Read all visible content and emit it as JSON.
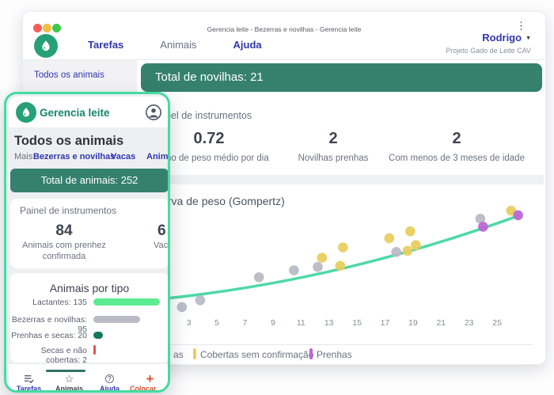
{
  "main_window": {
    "titlebar": {
      "title": "Gerencia leite - Bezerras e novilhas - Gerencia leite"
    },
    "nav": {
      "items": [
        "Tarefas",
        "Animais",
        "Ajuda"
      ],
      "user": {
        "name": "Rodrigo",
        "project": "Projeto Gado de Leite CAV"
      }
    },
    "sidebar": {
      "item": "Todos os animais"
    },
    "banner": "Total de novilhas: 21",
    "dashboard": {
      "title": "Painel de instrumentos",
      "stats": [
        {
          "value": "0.72",
          "label": "Ganho de peso médio por dia"
        },
        {
          "value": "2",
          "label": "Novilhas prenhas"
        },
        {
          "value": "2",
          "label": "Com menos de 3 meses de idade"
        }
      ]
    },
    "chart": {
      "title": "Curva de peso (Gompertz)",
      "legend_fragment": "as",
      "legend_items": [
        {
          "label": "Cobertas sem confirmação",
          "color": "#e8cf5f"
        },
        {
          "label": "Prenhas",
          "color": "#bd66d6"
        }
      ]
    }
  },
  "overlay_window": {
    "header": {
      "title": "Gerencia leite"
    },
    "heading": "Todos os animais",
    "mais": {
      "label": "Mais:",
      "links": [
        "Bezerras e novilhas",
        "Vacas",
        "Anim"
      ]
    },
    "banner": "Total de animais: 252",
    "dashboard": {
      "title": "Painel de instrumentos",
      "stats": [
        {
          "value": "84",
          "label": "Animais com prenhez confirmada"
        },
        {
          "value": "6",
          "label": "Vacas"
        }
      ]
    },
    "tipos": {
      "title": "Animais por tipo",
      "rows": [
        {
          "display": "Lactantes: 135",
          "value": 135,
          "color": "#5dec92"
        },
        {
          "display": "Bezerras e novilhas: 95",
          "value": 95,
          "color": "#b9bcc6"
        },
        {
          "display": "Prenhas e secas: 20",
          "value": 20,
          "color": "#14795f"
        },
        {
          "display": "Secas e não cobertas: 2",
          "value": 2,
          "color": "#e4534b"
        }
      ]
    },
    "tabs": [
      {
        "label": "Tarefas"
      },
      {
        "label": "Animais"
      },
      {
        "label": "Ajuda"
      },
      {
        "label": "Colocar dados"
      }
    ]
  },
  "colors": {
    "teal_banner": "#35816d",
    "brand_teal": "#15856b",
    "mint_accent": "#45dba0",
    "indigo_link": "#3136ae",
    "orange_action": "#cf4f2b",
    "gray_point": "#b9bac4",
    "yellow_point": "#e8cf5f",
    "purple_point": "#bd66d6"
  },
  "chart_data": [
    {
      "type": "scatter",
      "title": "Curva de peso (Gompertz)",
      "xlabel": "",
      "ylabel": "",
      "x_ticks": [
        3,
        5,
        7,
        9,
        11,
        13,
        15,
        17,
        19,
        21,
        23,
        25
      ],
      "x_range": [
        1.7,
        27
      ],
      "y_scale": "relative 0-1 (y axis labels not visible / occluded)",
      "legend_position": "bottom",
      "series": [
        {
          "name": "as",
          "color": "#b9bac4",
          "points": [
            [
              2.5,
              0.09
            ],
            [
              3.8,
              0.15
            ],
            [
              8.0,
              0.35
            ],
            [
              10.5,
              0.41
            ],
            [
              12.2,
              0.44
            ],
            [
              17.8,
              0.57
            ],
            [
              23.8,
              0.86
            ]
          ]
        },
        {
          "name": "Cobertas sem confirmação",
          "color": "#e8cf5f",
          "points": [
            [
              12.5,
              0.52
            ],
            [
              13.8,
              0.45
            ],
            [
              14.0,
              0.61
            ],
            [
              17.3,
              0.69
            ],
            [
              18.6,
              0.58
            ],
            [
              18.8,
              0.75
            ],
            [
              19.2,
              0.63
            ],
            [
              26.0,
              0.93
            ]
          ]
        },
        {
          "name": "Prenhas",
          "color": "#bd66d6",
          "points": [
            [
              24.0,
              0.79
            ],
            [
              26.5,
              0.89
            ]
          ]
        }
      ],
      "trend_line": {
        "color": "#4fd9a6",
        "points": [
          [
            1.7,
            0.17
          ],
          [
            14.1,
            0.43
          ],
          [
            26.5,
            0.885
          ]
        ]
      }
    },
    {
      "type": "bar",
      "title": "Animais por tipo",
      "orientation": "horizontal",
      "categories": [
        "Lactantes",
        "Bezerras e novilhas",
        "Prenhas e secas",
        "Secas e não cobertas"
      ],
      "values": [
        135,
        95,
        20,
        2
      ],
      "colors": [
        "#5dec92",
        "#b9bcc6",
        "#14795f",
        "#e4534b"
      ]
    }
  ]
}
